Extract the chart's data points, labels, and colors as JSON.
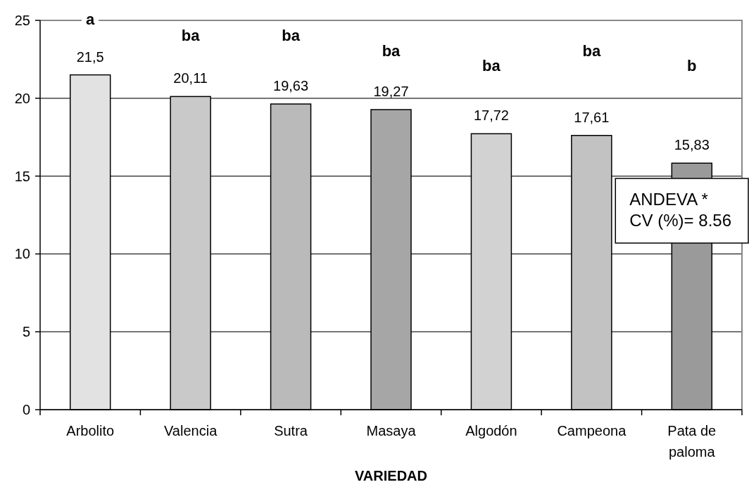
{
  "chart_data": {
    "type": "bar",
    "categories": [
      "Arbolito",
      "Valencia",
      "Sutra",
      "Masaya",
      "Algodón",
      "Campeona",
      "Pata de paloma"
    ],
    "values": [
      21.5,
      20.11,
      19.63,
      19.27,
      17.72,
      17.61,
      15.83
    ],
    "colors": [
      "#e2e2e2",
      "#c9c9c9",
      "#bababa",
      "#a6a6a6",
      "#d2d2d2",
      "#c2c2c2",
      "#9a9a9a"
    ],
    "value_labels": [
      "21,5",
      "20,11",
      "19,63",
      "19,27",
      "17,72",
      "17,61",
      "15,83"
    ],
    "xlabel": "VARIEDAD",
    "ylim": [
      0,
      25
    ],
    "yticks": [
      0,
      5,
      10,
      15,
      20,
      25
    ],
    "grid": "y",
    "annotations": [
      "a",
      "ba",
      "ba",
      "ba",
      "ba",
      "ba",
      "b",
      "ANDEVA *\nCV (%)= 8.56"
    ]
  }
}
